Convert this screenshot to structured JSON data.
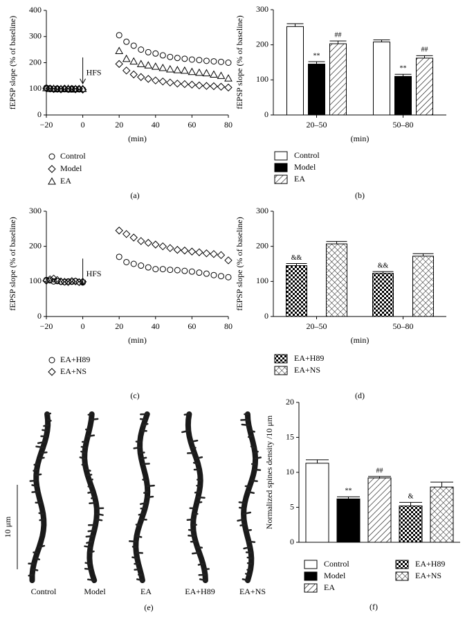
{
  "chart_data": [
    {
      "type": "scatter",
      "panel_label": "(a)",
      "ylabel": "fEPSP slope (% of baseline)",
      "xlabel": "(min)",
      "x": [
        -20,
        -18,
        -16,
        -14,
        -12,
        -10,
        -8,
        -6,
        -4,
        -2,
        0,
        20,
        24,
        28,
        32,
        36,
        40,
        44,
        48,
        52,
        56,
        60,
        64,
        68,
        72,
        76,
        80
      ],
      "xlim": [
        -20,
        80
      ],
      "xticks": [
        {
          "value": -20,
          "label": "−20"
        },
        0,
        20,
        40,
        60,
        80
      ],
      "ylim": [
        0,
        400
      ],
      "yticks": [
        0,
        100,
        200,
        300,
        400
      ],
      "annotation": {
        "text": "HFS",
        "x": 0
      },
      "series": [
        {
          "name": "Control",
          "marker": "circle",
          "color": "#000000",
          "values": [
            104,
            102,
            100,
            101,
            99,
            100,
            98,
            101,
            100,
            99,
            98,
            305,
            280,
            265,
            250,
            240,
            235,
            228,
            222,
            218,
            215,
            212,
            210,
            207,
            205,
            203,
            200
          ]
        },
        {
          "name": "Model",
          "marker": "diamond",
          "color": "#000000",
          "values": [
            102,
            101,
            99,
            100,
            98,
            101,
            99,
            100,
            98,
            100,
            97,
            195,
            170,
            155,
            145,
            138,
            132,
            128,
            124,
            120,
            118,
            116,
            113,
            111,
            110,
            108,
            105
          ]
        },
        {
          "name": "EA",
          "marker": "triangle",
          "color": "#000000",
          "values": [
            103,
            100,
            101,
            99,
            100,
            99,
            101,
            98,
            100,
            99,
            100,
            245,
            215,
            205,
            195,
            190,
            185,
            180,
            175,
            172,
            170,
            165,
            162,
            160,
            155,
            150,
            140
          ]
        }
      ]
    },
    {
      "type": "bar",
      "panel_label": "(b)",
      "ylabel": "fEPSP slope (% of baseline)",
      "xlabel": "(min)",
      "categories": [
        "20–50",
        "50–80"
      ],
      "ylim": [
        0,
        300
      ],
      "yticks": [
        0,
        100,
        200,
        300
      ],
      "series": [
        {
          "name": "Control",
          "pattern": "open",
          "values": [
            252,
            208
          ],
          "errors": [
            8,
            6
          ]
        },
        {
          "name": "Model",
          "pattern": "solid",
          "values": [
            145,
            110
          ],
          "errors": [
            7,
            6
          ],
          "significance": [
            "**",
            "**"
          ]
        },
        {
          "name": "EA",
          "pattern": "hatch",
          "values": [
            203,
            162
          ],
          "errors": [
            8,
            7
          ],
          "significance": [
            "##",
            "##"
          ]
        }
      ]
    },
    {
      "type": "scatter",
      "panel_label": "(c)",
      "ylabel": "fEPSP slope (% of baseline)",
      "xlabel": "(min)",
      "x": [
        -20,
        -18,
        -16,
        -14,
        -12,
        -10,
        -8,
        -6,
        -4,
        -2,
        0,
        20,
        24,
        28,
        32,
        36,
        40,
        44,
        48,
        52,
        56,
        60,
        64,
        68,
        72,
        76,
        80
      ],
      "xlim": [
        -20,
        80
      ],
      "xticks": [
        {
          "value": -20,
          "label": "−20"
        },
        0,
        20,
        40,
        60,
        80
      ],
      "ylim": [
        0,
        300
      ],
      "yticks": [
        0,
        100,
        200,
        300
      ],
      "annotation": {
        "text": "HFS",
        "x": 0
      },
      "series": [
        {
          "name": "EA+H89",
          "marker": "circle",
          "color": "#000000",
          "values": [
            104,
            103,
            100,
            101,
            99,
            98,
            100,
            99,
            101,
            98,
            97,
            170,
            155,
            150,
            145,
            140,
            135,
            135,
            133,
            132,
            130,
            128,
            125,
            122,
            118,
            115,
            112
          ]
        },
        {
          "name": "EA+NS",
          "marker": "diamond",
          "color": "#000000",
          "values": [
            102,
            106,
            108,
            104,
            100,
            99,
            98,
            101,
            100,
            98,
            99,
            245,
            235,
            225,
            215,
            210,
            205,
            200,
            195,
            190,
            188,
            185,
            183,
            180,
            178,
            175,
            160
          ]
        }
      ]
    },
    {
      "type": "bar",
      "panel_label": "(d)",
      "ylabel": "fEPSP slope (% of baseline)",
      "xlabel": "(min)",
      "categories": [
        "20–50",
        "50–80"
      ],
      "ylim": [
        0,
        300
      ],
      "yticks": [
        0,
        100,
        200,
        300
      ],
      "series": [
        {
          "name": "EA+H89",
          "pattern": "checker",
          "values": [
            145,
            123
          ],
          "errors": [
            6,
            5
          ],
          "significance": [
            "&&",
            "&&"
          ]
        },
        {
          "name": "EA+NS",
          "pattern": "crosshatch",
          "values": [
            207,
            172
          ],
          "errors": [
            7,
            7
          ]
        }
      ]
    },
    {
      "type": "bar",
      "panel_label": "(f)",
      "ylabel": "Normalized spines density /10 μm",
      "ylim": [
        0,
        20
      ],
      "yticks": [
        0,
        5,
        10,
        15,
        20
      ],
      "series": [
        {
          "name": "Control",
          "pattern": "open",
          "values": [
            11.3
          ],
          "errors": [
            0.5
          ]
        },
        {
          "name": "Model",
          "pattern": "solid",
          "values": [
            6.2
          ],
          "errors": [
            0.3
          ],
          "significance": [
            "**"
          ]
        },
        {
          "name": "EA",
          "pattern": "hatch",
          "values": [
            9.2
          ],
          "errors": [
            0.2
          ],
          "significance": [
            "##"
          ]
        },
        {
          "name": "EA+H89",
          "pattern": "checker",
          "values": [
            5.2
          ],
          "errors": [
            0.5
          ],
          "significance": [
            "&"
          ]
        },
        {
          "name": "EA+NS",
          "pattern": "crosshatch",
          "values": [
            7.9
          ],
          "errors": [
            0.7
          ]
        }
      ]
    }
  ],
  "micrographs": {
    "panel_label": "(e)",
    "scale_bar": "10 μm",
    "labels": [
      "Control",
      "Model",
      "EA",
      "EA+H89",
      "EA+NS"
    ]
  }
}
